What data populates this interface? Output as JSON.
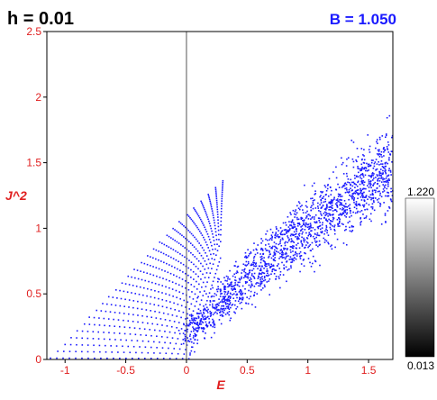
{
  "header": {
    "h_label": "h = 0.01",
    "b_label": "B = 1.050"
  },
  "colorbar": {
    "max_label": "1.220",
    "min_label": "0.013"
  },
  "colors": {
    "points": "#1a1aff",
    "axis_text": "#e02020",
    "frame": "#000000"
  },
  "chart_data": {
    "type": "scatter",
    "title": "",
    "xlabel": "E",
    "ylabel": "J^2",
    "xlim": [
      -1.15,
      1.7
    ],
    "ylim": [
      0,
      2.5
    ],
    "xticks": [
      -1,
      -0.5,
      0,
      0.5,
      1,
      1.5
    ],
    "xtick_labels": [
      "-1",
      "-0.5",
      "0",
      "0.5",
      "1",
      "1.5"
    ],
    "yticks": [
      0,
      0.5,
      1,
      1.5,
      2,
      2.5
    ],
    "ytick_labels": [
      "0",
      "0.5",
      "1",
      "1.5",
      "2",
      "2.5"
    ],
    "vertical_line_x": 0,
    "grid": false,
    "series": [
      {
        "name": "",
        "regular_curves": {
          "description_levels_J2": [
            0.01,
            0.06,
            0.11,
            0.16,
            0.21,
            0.26,
            0.31,
            0.36,
            0.41,
            0.46,
            0.51,
            0.56,
            0.61,
            0.66,
            0.71,
            0.76,
            0.81,
            0.86,
            0.91,
            0.96,
            1.01,
            1.06,
            1.11,
            1.16,
            1.21,
            1.26,
            1.31
          ],
          "left_E_at_level": [
            -1.12,
            -1.06,
            -1.0,
            -0.95,
            -0.9,
            -0.84,
            -0.8,
            -0.74,
            -0.69,
            -0.64,
            -0.58,
            -0.53,
            -0.48,
            -0.43,
            -0.37,
            -0.32,
            -0.27,
            -0.22,
            -0.16,
            -0.11,
            -0.06,
            0.01,
            0.06,
            0.12,
            0.18,
            0.24,
            0.3
          ],
          "right_E": 0.02
        },
        "chaotic_band": {
          "center_start": [
            0.0,
            0.15
          ],
          "center_end": [
            1.7,
            1.48
          ],
          "spread": 0.12
        }
      }
    ]
  }
}
